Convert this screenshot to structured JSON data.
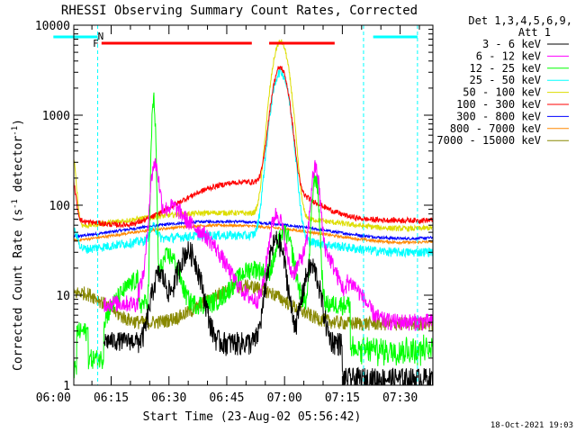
{
  "chart_data": {
    "type": "line",
    "title": "RHESSI Observing Summary Count Rates, Corrected",
    "xlabel": "Start Time (23-Aug-02 05:56:42)",
    "ylabel_main": "Corrected Count Rate (s",
    "ylabel_sup": "-1",
    "ylabel_tail": " detector",
    "ylabel_sup2": "-1",
    "ylabel_end": ")",
    "yscale": "log",
    "ylim": [
      1,
      10000
    ],
    "xlim_minutes": [
      5.3,
      98.5
    ],
    "x_ticks": [
      {
        "label": "06:00",
        "x": 0
      },
      {
        "label": "06:15",
        "x": 15
      },
      {
        "label": "06:30",
        "x": 30
      },
      {
        "label": "06:45",
        "x": 45
      },
      {
        "label": "07:00",
        "x": 60
      },
      {
        "label": "07:15",
        "x": 75
      },
      {
        "label": "07:30",
        "x": 90
      }
    ],
    "y_ticks": [
      {
        "label": "1",
        "v": 1
      },
      {
        "label": "10",
        "v": 10
      },
      {
        "label": "100",
        "v": 100
      },
      {
        "label": "1000",
        "v": 1000
      },
      {
        "label": "10000",
        "v": 10000
      }
    ],
    "legend_header": [
      "Det 1,3,4,5,6,9,",
      "Att 1"
    ],
    "legend_placement": "right",
    "series": [
      {
        "name": "3 - 6 keV",
        "color": "#000000"
      },
      {
        "name": "6 - 12 keV",
        "color": "#ff00ff"
      },
      {
        "name": "12 - 25 keV",
        "color": "#00ff00"
      },
      {
        "name": "25 - 50 keV",
        "color": "#00ffff"
      },
      {
        "name": "50 - 100 keV",
        "color": "#dddd00"
      },
      {
        "name": "100 - 300 keV",
        "color": "#ff0000"
      },
      {
        "name": "300 - 800 keV",
        "color": "#0000ff"
      },
      {
        "name": "800 - 7000 keV",
        "color": "#ff8800"
      },
      {
        "name": "7000 - 15000 keV",
        "color": "#888800"
      }
    ],
    "annotations": [
      {
        "label": "F",
        "color": "#ff0000"
      },
      {
        "label": "N",
        "color": "#00ffff"
      }
    ],
    "flag_bars": {
      "night_cyan": [
        [
          0,
          11.5
        ],
        [
          83,
          94.5
        ]
      ],
      "flare_red": [
        [
          12.5,
          51.5
        ],
        [
          56,
          73
        ]
      ]
    },
    "dashed_lines_cyan": [
      11.5,
      80.5,
      94.5
    ]
  },
  "footer": {
    "timestamp": "18-Oct-2021 19:03"
  }
}
